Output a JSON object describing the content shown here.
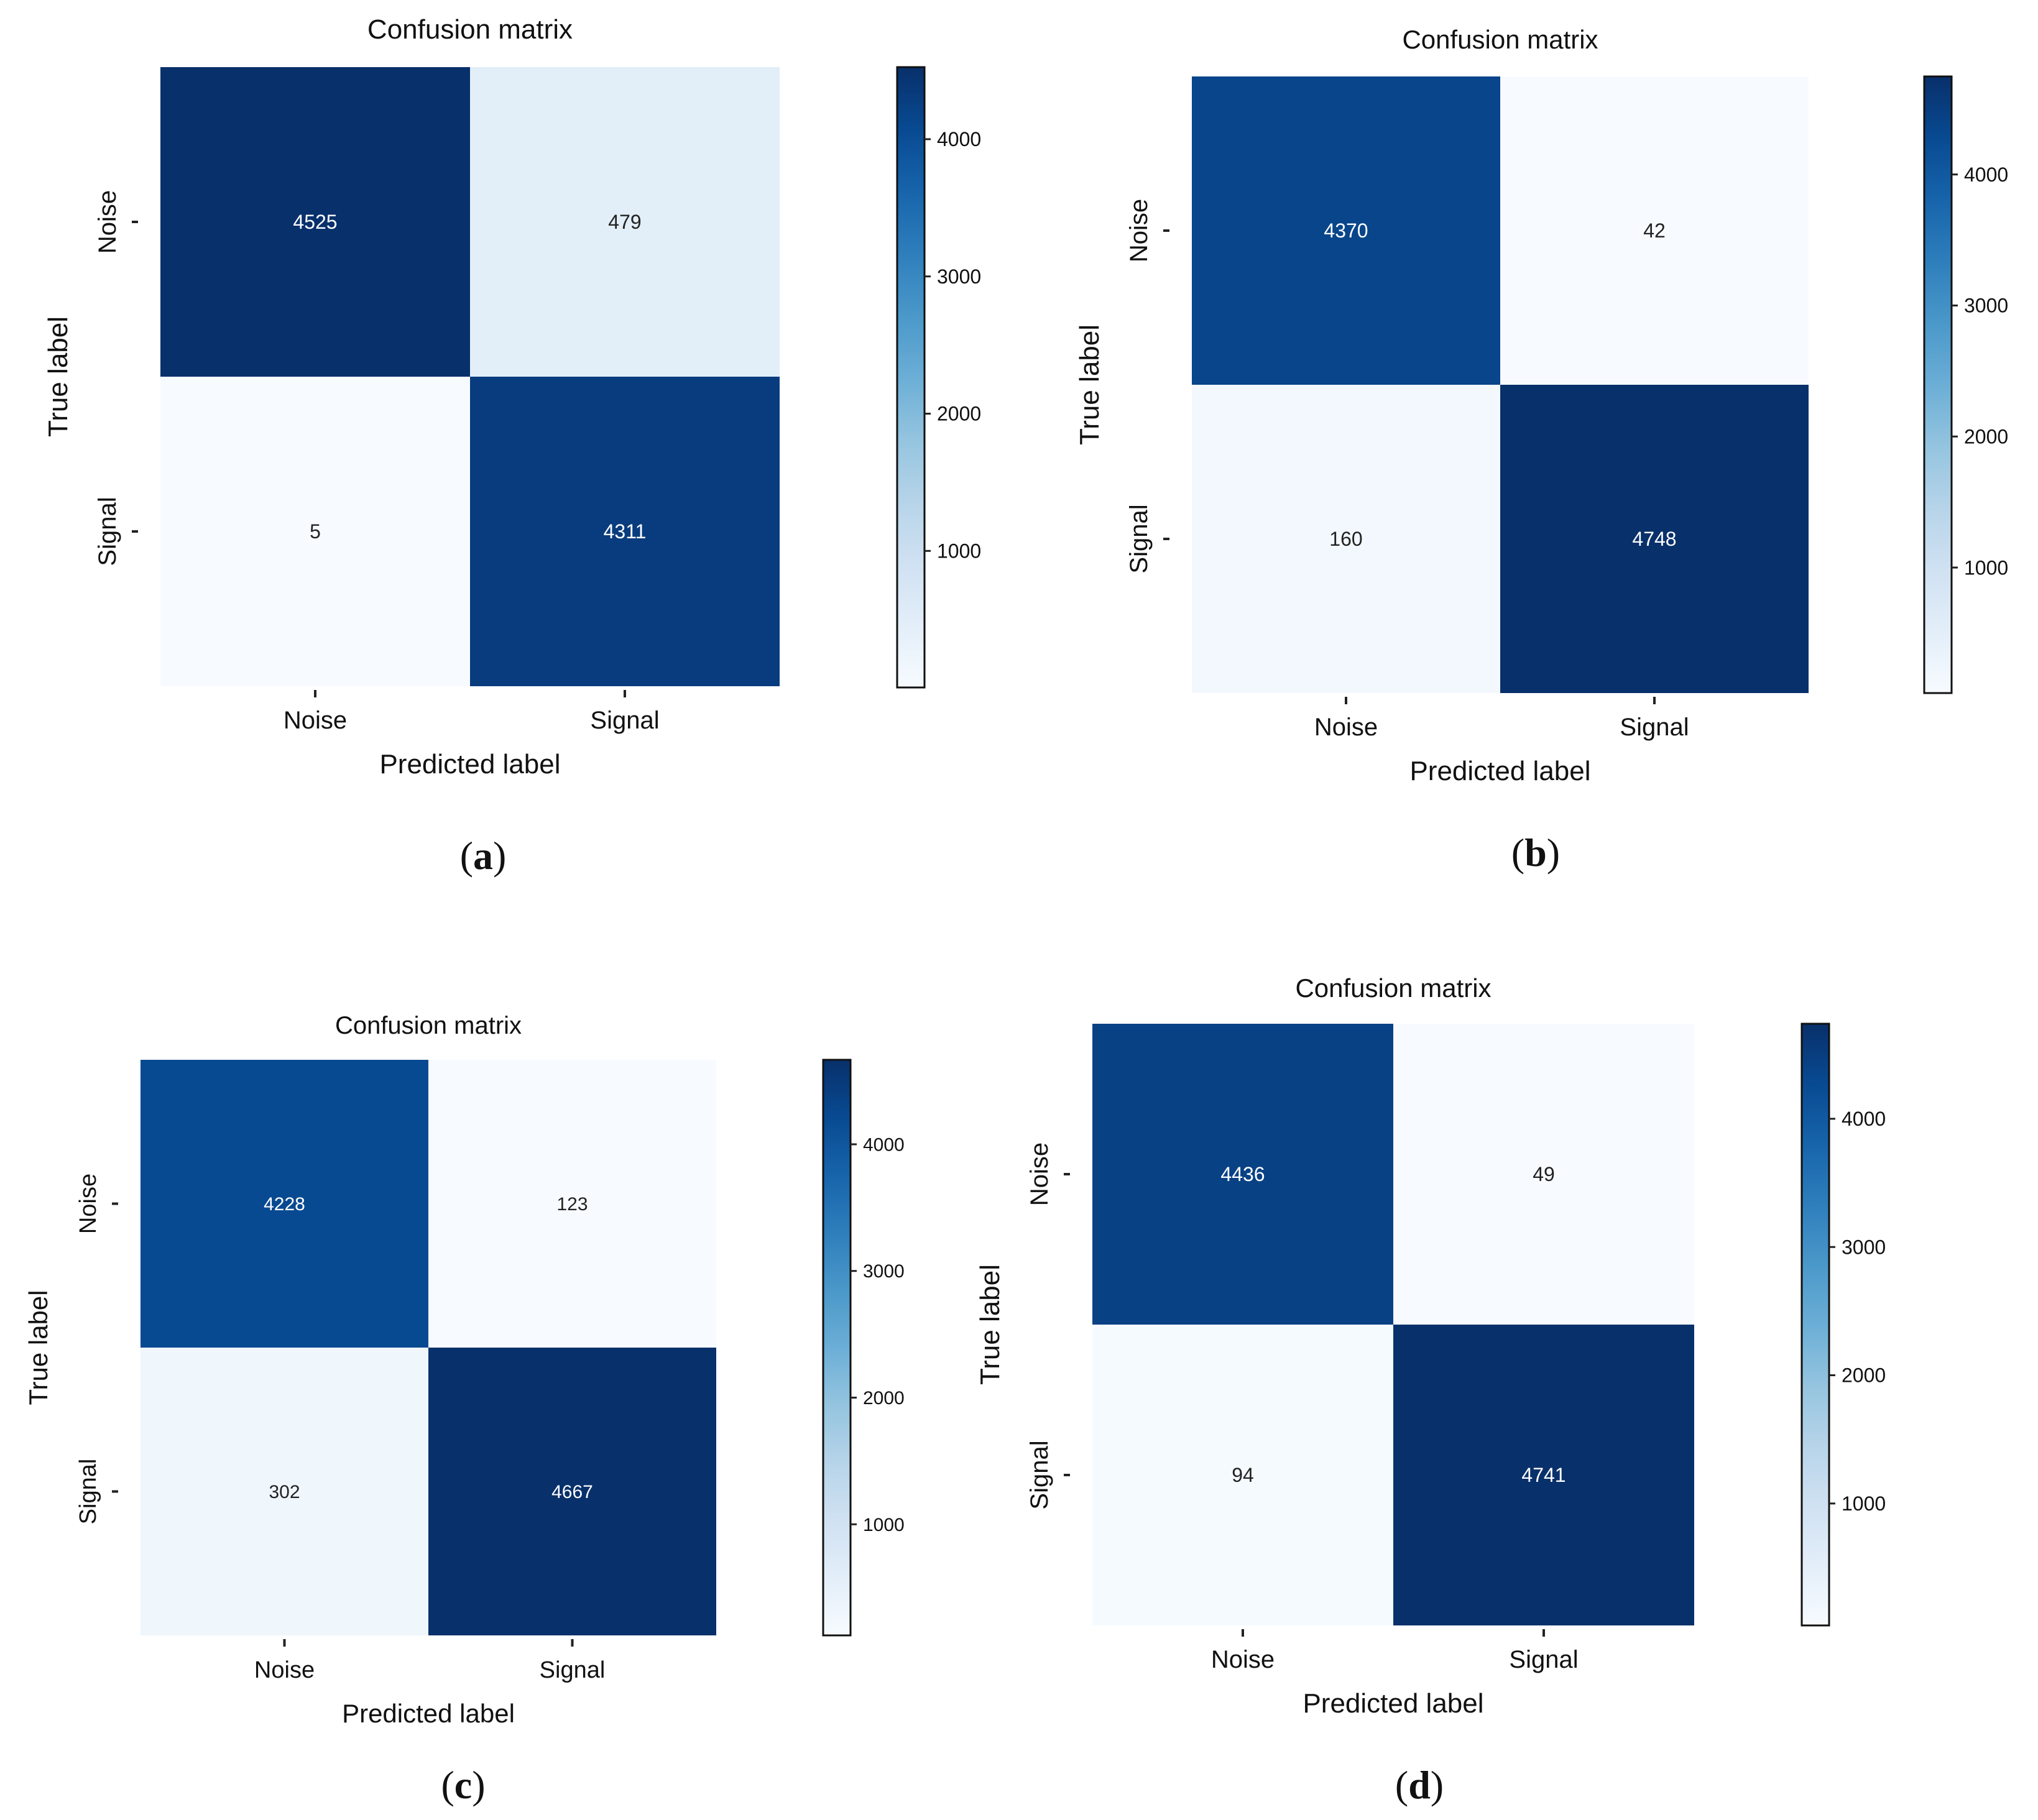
{
  "chart_data": [
    {
      "type": "heatmap",
      "panel_label": "(a)",
      "title": "Confusion matrix",
      "xlabel": "Predicted label",
      "ylabel": "True label",
      "x_categories": [
        "Noise",
        "Signal"
      ],
      "y_categories": [
        "Noise",
        "Signal"
      ],
      "values": [
        [
          4525,
          479
        ],
        [
          5,
          4311
        ]
      ],
      "colorbar": {
        "ticks": [
          1000,
          2000,
          3000,
          4000
        ],
        "range": [
          5,
          4525
        ],
        "colormap": "Blues"
      }
    },
    {
      "type": "heatmap",
      "panel_label": "(b)",
      "title": "Confusion matrix",
      "xlabel": "Predicted label",
      "ylabel": "True label",
      "x_categories": [
        "Noise",
        "Signal"
      ],
      "y_categories": [
        "Noise",
        "Signal"
      ],
      "values": [
        [
          4370,
          42
        ],
        [
          160,
          4748
        ]
      ],
      "colorbar": {
        "ticks": [
          1000,
          2000,
          3000,
          4000
        ],
        "range": [
          42,
          4748
        ],
        "colormap": "Blues"
      }
    },
    {
      "type": "heatmap",
      "panel_label": "(c)",
      "title": "Confusion matrix",
      "xlabel": "Predicted label",
      "ylabel": "True label",
      "x_categories": [
        "Noise",
        "Signal"
      ],
      "y_categories": [
        "Noise",
        "Signal"
      ],
      "values": [
        [
          4228,
          123
        ],
        [
          302,
          4667
        ]
      ],
      "colorbar": {
        "ticks": [
          1000,
          2000,
          3000,
          4000
        ],
        "range": [
          123,
          4667
        ],
        "colormap": "Blues"
      }
    },
    {
      "type": "heatmap",
      "panel_label": "(d)",
      "title": "Confusion matrix",
      "xlabel": "Predicted label",
      "ylabel": "True label",
      "x_categories": [
        "Noise",
        "Signal"
      ],
      "y_categories": [
        "Noise",
        "Signal"
      ],
      "values": [
        [
          4436,
          49
        ],
        [
          94,
          4741
        ]
      ],
      "colorbar": {
        "ticks": [
          1000,
          2000,
          3000,
          4000
        ],
        "range": [
          49,
          4741
        ],
        "colormap": "Blues"
      }
    }
  ]
}
